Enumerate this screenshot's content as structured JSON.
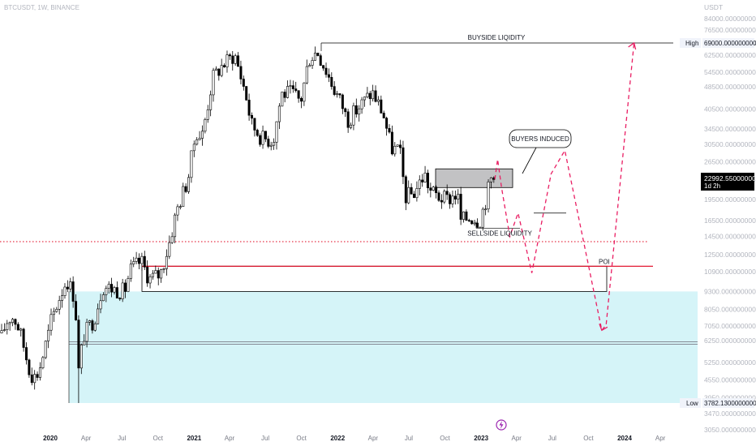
{
  "header": {
    "symbol_line": "BTCUSDT, 1W, BINANCE",
    "currency": "USDT"
  },
  "colors": {
    "bull": "#ffffff",
    "bear": "#000000",
    "wick": "#000000",
    "zone": "#b2ebf2",
    "poi_line": "#e0001b",
    "forecast": "#e91e63",
    "dotted": "#e0001b",
    "label_bg": "#000000"
  },
  "chart_data": {
    "type": "candlestick",
    "x_axis_labels": [
      "2020",
      "Apr",
      "Jul",
      "Oct",
      "2021",
      "Apr",
      "Jul",
      "Oct",
      "2022",
      "Apr",
      "Jul",
      "Oct",
      "2023",
      "Apr",
      "Jul",
      "Oct",
      "2024",
      "Apr"
    ],
    "y_axis_labels": [
      "84000.0000000000",
      "76500.0000000000",
      "69000.0000000000",
      "62500.0000000000",
      "54500.0000000000",
      "48500.0000000000",
      "40500.0000000000",
      "34500.0000000000",
      "30500.0000000000",
      "26500.0000000000",
      "23000.0000000000",
      "19500.0000000000",
      "16500.0000000000",
      "14500.0000000000",
      "12500.0000000000",
      "10900.0000000000",
      "9300.0000000000",
      "8050.0000000000",
      "7050.0000000000",
      "6250.0000000000",
      "5250.0000000000",
      "4550.0000000000",
      "3950.0000000000",
      "3470.0000000000",
      "3050.0000000000"
    ],
    "y_scale": "log",
    "ylim": [
      2900,
      90000
    ],
    "price_labels": {
      "high": {
        "tag": "High",
        "value": "69000.0000000000"
      },
      "current": {
        "value": "22992.5500000000",
        "sub": "1d 2h"
      },
      "low": {
        "tag": "Low",
        "value": "3782.1300000000"
      }
    },
    "annotations": {
      "buyside": "BUYSIDE LIQIDITY",
      "sellside": "SELLSIDE LIQUIDITY",
      "callout": "BUYERS INDUCED",
      "poi": "POI"
    },
    "weekly_close_path": [
      [
        "2020-01-01",
        7200
      ],
      [
        "2020-01-22",
        8700
      ],
      [
        "2020-02-12",
        10300
      ],
      [
        "2020-03-04",
        8800
      ],
      [
        "2020-03-13",
        4900
      ],
      [
        "2020-03-25",
        6500
      ],
      [
        "2020-04-22",
        7500
      ],
      [
        "2020-05-13",
        9700
      ],
      [
        "2020-06-10",
        9500
      ],
      [
        "2020-07-08",
        9300
      ],
      [
        "2020-07-22",
        11000
      ],
      [
        "2020-08-19",
        11900
      ],
      [
        "2020-09-09",
        10300
      ],
      [
        "2020-10-07",
        10700
      ],
      [
        "2020-10-28",
        13500
      ],
      [
        "2020-11-18",
        18000
      ],
      [
        "2020-12-16",
        23000
      ],
      [
        "2021-01-06",
        34000
      ],
      [
        "2021-01-20",
        32000
      ],
      [
        "2021-02-17",
        52000
      ],
      [
        "2021-03-10",
        57000
      ],
      [
        "2021-04-14",
        63000
      ],
      [
        "2021-05-12",
        46000
      ],
      [
        "2021-05-26",
        36000
      ],
      [
        "2021-06-23",
        32000
      ],
      [
        "2021-07-21",
        31500
      ],
      [
        "2021-08-11",
        46000
      ],
      [
        "2021-09-08",
        46000
      ],
      [
        "2021-09-29",
        43000
      ],
      [
        "2021-10-20",
        61000
      ],
      [
        "2021-11-10",
        64800
      ],
      [
        "2021-12-01",
        56000
      ],
      [
        "2021-12-22",
        48000
      ],
      [
        "2022-01-12",
        42000
      ],
      [
        "2022-01-26",
        37000
      ],
      [
        "2022-03-02",
        42000
      ],
      [
        "2022-03-30",
        46500
      ],
      [
        "2022-04-27",
        39000
      ],
      [
        "2022-05-18",
        29500
      ],
      [
        "2022-06-08",
        29000
      ],
      [
        "2022-06-22",
        20000
      ],
      [
        "2022-07-13",
        20500
      ],
      [
        "2022-08-10",
        24000
      ],
      [
        "2022-08-24",
        21000
      ],
      [
        "2022-09-14",
        20000
      ],
      [
        "2022-10-05",
        19500
      ],
      [
        "2022-11-02",
        20500
      ],
      [
        "2022-11-09",
        16500
      ],
      [
        "2022-12-07",
        17000
      ],
      [
        "2022-12-28",
        16500
      ],
      [
        "2023-01-11",
        19000
      ],
      [
        "2023-01-25",
        23000
      ],
      [
        "2023-02-05",
        22992.55
      ]
    ],
    "levels": {
      "buyside_liquidity": 69000,
      "poi_line": 11400,
      "poi_zone_low": 9300,
      "poi_zone_high": 11400,
      "dotted_line": 13900,
      "discount_zone_low": 3782.13,
      "discount_zone_high": 9300,
      "discount_zone_mid": 6200,
      "sellside_liquidity": 15500,
      "supply_box_low": 21500,
      "supply_box_high": 25000,
      "inducement_line": 17500
    },
    "forecast_path": [
      [
        "2023-02-05",
        22992.55
      ],
      [
        "2023-02-12",
        27000
      ],
      [
        "2023-02-22",
        21500
      ],
      [
        "2023-03-15",
        14500
      ],
      [
        "2023-04-05",
        17500
      ],
      [
        "2023-05-10",
        10800
      ],
      [
        "2023-06-28",
        24000
      ],
      [
        "2023-08-02",
        29000
      ],
      [
        "2023-10-01",
        11500
      ],
      [
        "2023-11-04",
        6800
      ],
      [
        "2023-11-15",
        7100
      ],
      [
        "2024-01-25",
        69000
      ]
    ],
    "grid": false,
    "legend": "none"
  }
}
